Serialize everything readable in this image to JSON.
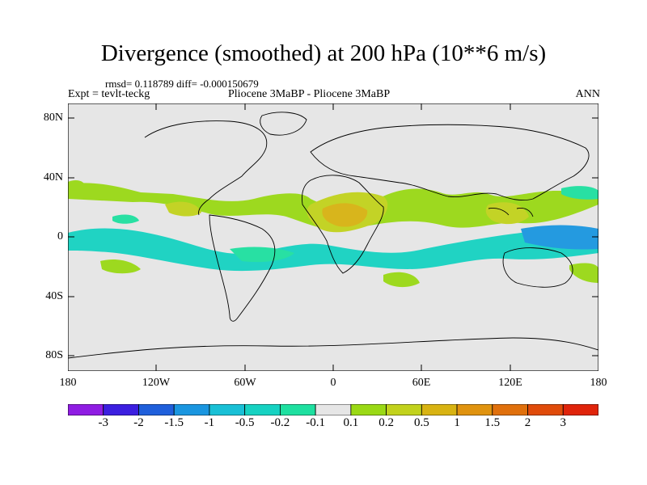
{
  "title": "Divergence (smoothed) at 200 hPa (10**6 m/s)",
  "stats_line": "rmsd= 0.118789 diff= -0.000150679",
  "experiment": "Expt = tevlt-teckg",
  "subtitle": "Pliocene   3MaBP - Pliocene   3MaBP",
  "season": "ANN",
  "map": {
    "projection": "cylindrical equidistant",
    "lon_range": [
      -180,
      180
    ],
    "lat_range": [
      -90,
      90
    ],
    "background_color": "#e6e6e6",
    "lat_ticks": [
      "80N",
      "40N",
      "0",
      "40S",
      "80S"
    ],
    "lon_ticks": [
      "180",
      "120W",
      "60W",
      "0",
      "60E",
      "120E",
      "180"
    ]
  },
  "colorbar": {
    "colors": [
      "#8f1ce3",
      "#3c1fe0",
      "#1f5fdb",
      "#1a96e0",
      "#19c0d6",
      "#16d2c2",
      "#1ee0a0",
      "#e6e6e6",
      "#9ad915",
      "#c2d21c",
      "#d8b312",
      "#e0930f",
      "#e0700c",
      "#e04b0a",
      "#e0240b"
    ],
    "labels": [
      "-3",
      "-2",
      "-1.5",
      "-1",
      "-0.5",
      "-0.2",
      "-0.1",
      "0.1",
      "0.2",
      "0.5",
      "1",
      "1.5",
      "2",
      "3"
    ]
  }
}
